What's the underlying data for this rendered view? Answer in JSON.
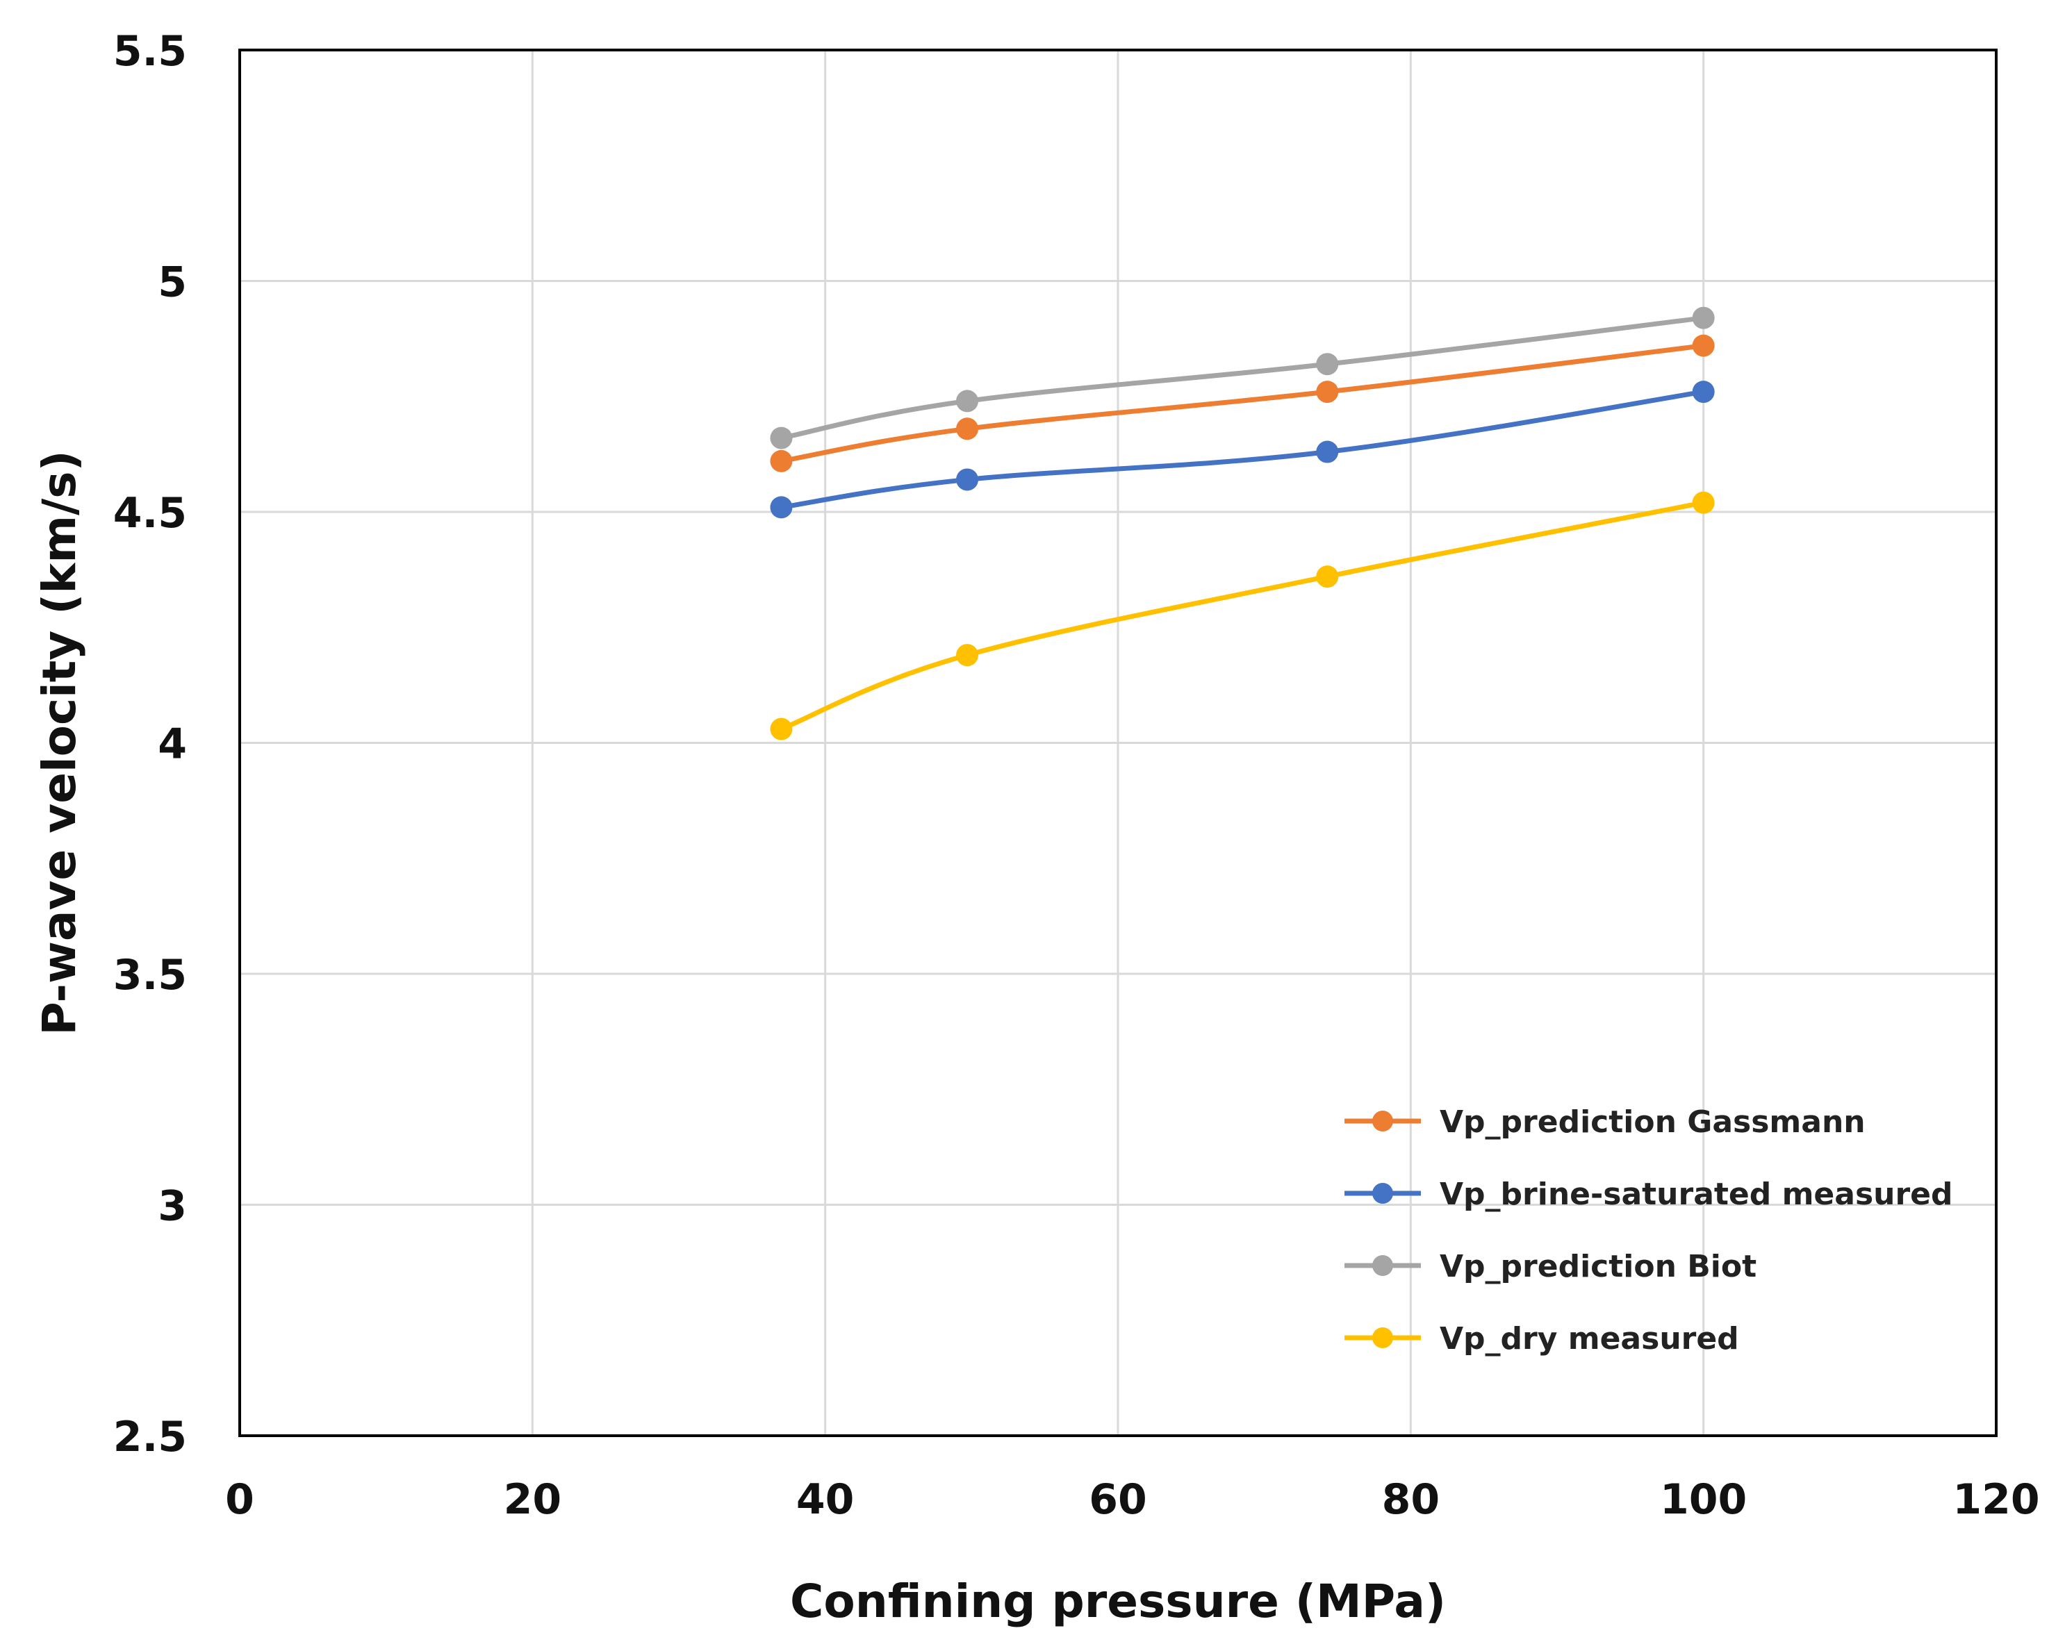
{
  "chart_data": {
    "type": "line",
    "title": "",
    "xlabel": "Confining pressure (MPa)",
    "ylabel": "P-wave velocity (km/s)",
    "xlim": [
      0,
      120
    ],
    "ylim": [
      2.5,
      5.5
    ],
    "xticks": [
      0,
      20,
      40,
      60,
      80,
      100,
      120
    ],
    "yticks": [
      2.5,
      3,
      3.5,
      4,
      4.5,
      5,
      5.5
    ],
    "xtick_labels": [
      "0",
      "20",
      "40",
      "60",
      "80",
      "100",
      "120"
    ],
    "ytick_labels": [
      "2.5",
      "3",
      "3.5",
      "4",
      "4.5",
      "5",
      "5.5"
    ],
    "grid": true,
    "legend_position": "bottom-right",
    "x": [
      37,
      49.7,
      74.3,
      100
    ],
    "series": [
      {
        "name": "Vp_prediction Gassmann",
        "color": "#ED7D31",
        "values": [
          4.61,
          4.68,
          4.76,
          4.86
        ]
      },
      {
        "name": "Vp_brine-saturated measured",
        "color": "#4472C4",
        "values": [
          4.51,
          4.57,
          4.63,
          4.76
        ]
      },
      {
        "name": "Vp_prediction Biot",
        "color": "#A5A5A5",
        "values": [
          4.66,
          4.74,
          4.82,
          4.92
        ]
      },
      {
        "name": "Vp_dry measured",
        "color": "#FFC000",
        "values": [
          4.03,
          4.19,
          4.36,
          4.52
        ]
      }
    ]
  },
  "colors": {
    "grid": "#d9d9d9",
    "axis": "#000000",
    "text": "#111111"
  }
}
